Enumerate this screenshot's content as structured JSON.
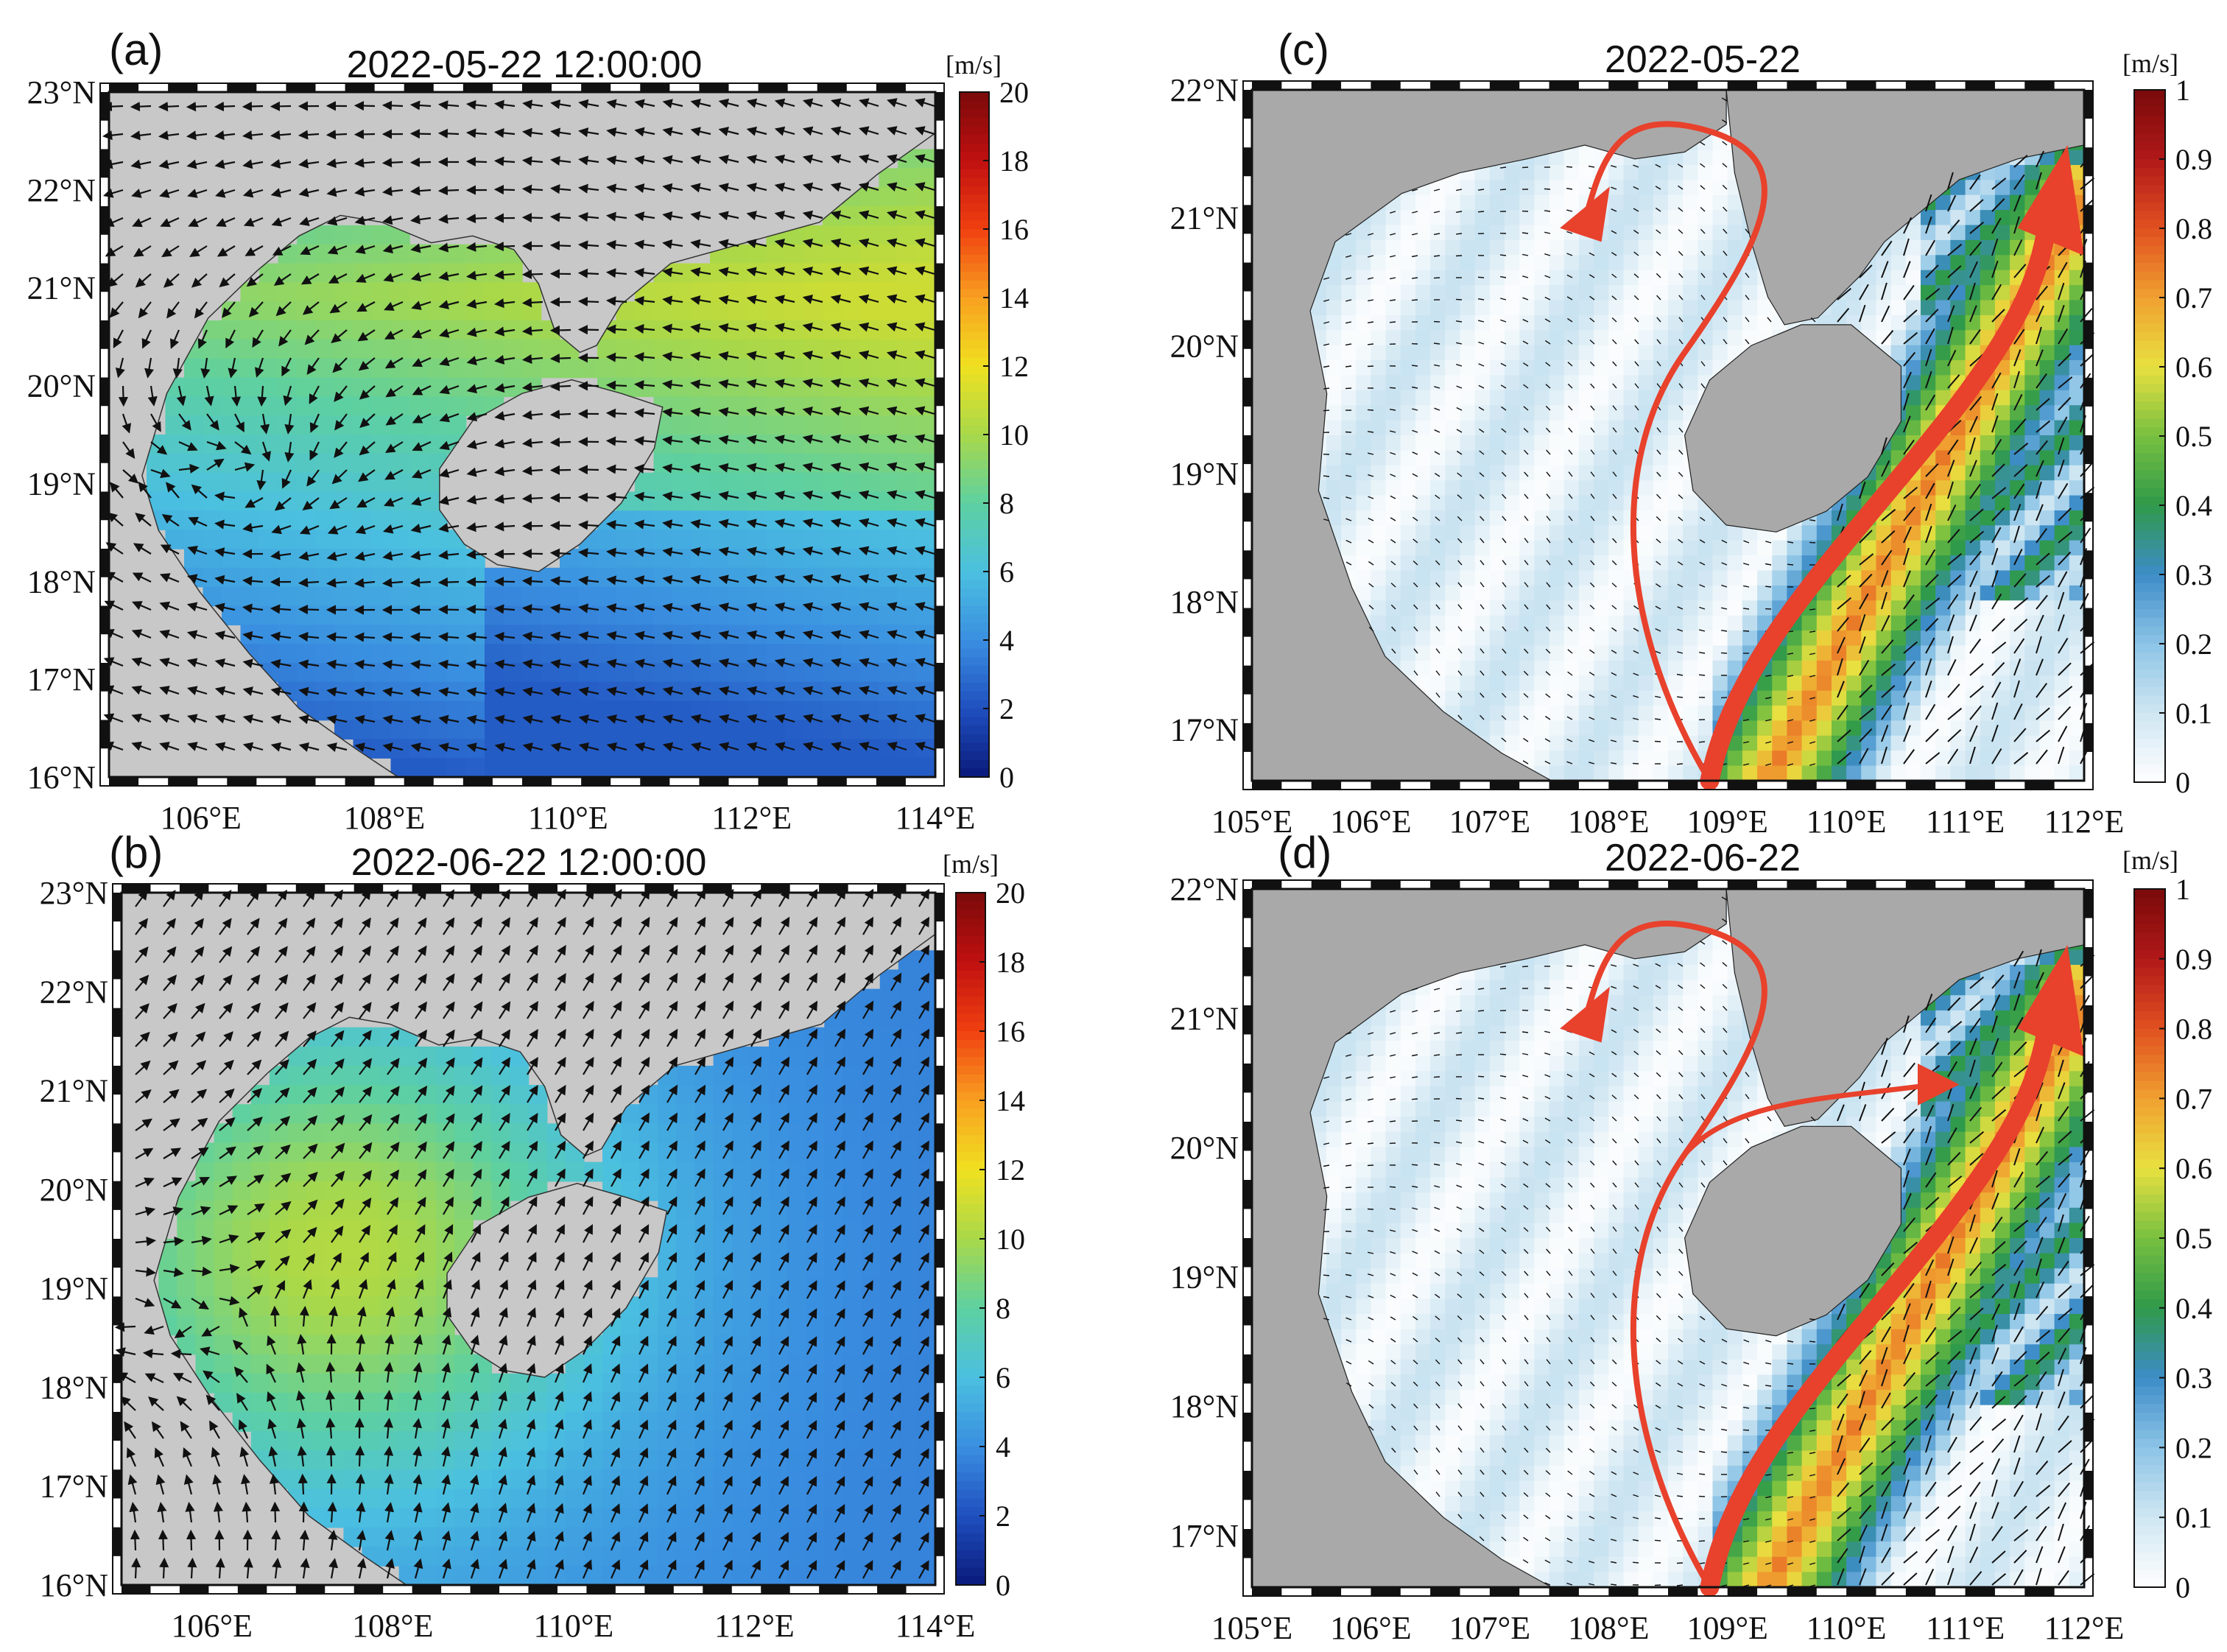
{
  "panels": [
    {
      "id": "a",
      "tag": "(a)",
      "title": "2022-05-22 12:00:00",
      "kind": "wind",
      "lon_range": [
        105,
        114
      ],
      "lat_range": [
        16,
        23
      ],
      "lon_ticks": [
        106,
        108,
        110,
        112,
        114
      ],
      "lon_tick_labels": [
        "106°E",
        "108°E",
        "110°E",
        "112°E",
        "114°E"
      ],
      "lat_ticks": [
        16,
        17,
        18,
        19,
        20,
        21,
        22,
        23
      ],
      "lat_tick_labels": [
        "16°N",
        "17°N",
        "18°N",
        "19°N",
        "20°N",
        "21°N",
        "22°N",
        "23°N"
      ],
      "colorbar": {
        "unit": "[m/s]",
        "min": 0,
        "max": 20,
        "ticks": [
          0,
          2,
          4,
          6,
          8,
          10,
          12,
          14,
          16,
          18,
          20
        ],
        "tick_labels": [
          "0",
          "2",
          "4",
          "6",
          "8",
          "10",
          "12",
          "14",
          "16",
          "18",
          "20"
        ],
        "colors": [
          "#0a1a7a",
          "#1f4fbf",
          "#3a8fe0",
          "#4bc0e0",
          "#5ed0a0",
          "#a8d84a",
          "#f0e020",
          "#f8a020",
          "#f04010",
          "#c01010",
          "#7a0a0a"
        ]
      },
      "field": {
        "direction_deg": 200,
        "vortex_lon": 106.4,
        "vortex_lat": 19.1
      }
    },
    {
      "id": "b",
      "tag": "(b)",
      "title": "2022-06-22 12:00:00",
      "kind": "wind",
      "lon_range": [
        105,
        114
      ],
      "lat_range": [
        16,
        23
      ],
      "lon_ticks": [
        106,
        108,
        110,
        112,
        114
      ],
      "lon_tick_labels": [
        "106°E",
        "108°E",
        "110°E",
        "112°E",
        "114°E"
      ],
      "lat_ticks": [
        16,
        17,
        18,
        19,
        20,
        21,
        22,
        23
      ],
      "lat_tick_labels": [
        "16°N",
        "17°N",
        "18°N",
        "19°N",
        "20°N",
        "21°N",
        "22°N",
        "23°N"
      ],
      "colorbar": {
        "unit": "[m/s]",
        "min": 0,
        "max": 20,
        "ticks": [
          0,
          2,
          4,
          6,
          8,
          10,
          12,
          14,
          16,
          18,
          20
        ],
        "tick_labels": [
          "0",
          "2",
          "4",
          "6",
          "8",
          "10",
          "12",
          "14",
          "16",
          "18",
          "20"
        ],
        "colors": [
          "#0a1a7a",
          "#1f4fbf",
          "#3a8fe0",
          "#4bc0e0",
          "#5ed0a0",
          "#a8d84a",
          "#f0e020",
          "#f8a020",
          "#f04010",
          "#c01010",
          "#7a0a0a"
        ]
      },
      "field": {
        "direction_deg": 60,
        "vortex_lon": 106.2,
        "vortex_lat": 18.7
      }
    },
    {
      "id": "c",
      "tag": "(c)",
      "title": "2022-05-22",
      "kind": "current",
      "lon_range": [
        105,
        112
      ],
      "lat_range": [
        16.6,
        22
      ],
      "lon_ticks": [
        105,
        106,
        107,
        108,
        109,
        110,
        111,
        112
      ],
      "lon_tick_labels": [
        "105°E",
        "106°E",
        "107°E",
        "108°E",
        "109°E",
        "110°E",
        "111°E",
        "112°E"
      ],
      "lat_ticks": [
        17,
        18,
        19,
        20,
        21,
        22
      ],
      "lat_tick_labels": [
        "17°N",
        "18°N",
        "19°N",
        "20°N",
        "21°N",
        "22°N"
      ],
      "colorbar": {
        "unit": "[m/s]",
        "min": 0,
        "max": 1,
        "ticks": [
          0,
          0.1,
          0.2,
          0.3,
          0.4,
          0.5,
          0.6,
          0.7,
          0.8,
          0.9,
          1
        ],
        "tick_labels": [
          "0",
          "0.1",
          "0.2",
          "0.3",
          "0.4",
          "0.5",
          "0.6",
          "0.7",
          "0.8",
          "0.9",
          "1"
        ],
        "colors": [
          "#ffffff",
          "#cfe6f2",
          "#8cc4e6",
          "#3d8cc8",
          "#2f9a4a",
          "#78c040",
          "#e8e040",
          "#f0a030",
          "#e05020",
          "#b01818",
          "#7a0a0a"
        ]
      },
      "arrows_drawn": [
        "north-branch-to-21N-108E",
        "shelf-jet-to-112E-21N"
      ]
    },
    {
      "id": "d",
      "tag": "(d)",
      "title": "2022-06-22",
      "kind": "current",
      "lon_range": [
        105,
        112
      ],
      "lat_range": [
        16.6,
        22
      ],
      "lon_ticks": [
        105,
        106,
        107,
        108,
        109,
        110,
        111,
        112
      ],
      "lon_tick_labels": [
        "105°E",
        "106°E",
        "107°E",
        "108°E",
        "109°E",
        "110°E",
        "111°E",
        "112°E"
      ],
      "lat_ticks": [
        17,
        18,
        19,
        20,
        21,
        22
      ],
      "lat_tick_labels": [
        "17°N",
        "18°N",
        "19°N",
        "20°N",
        "21°N",
        "22°N"
      ],
      "colorbar": {
        "unit": "[m/s]",
        "min": 0,
        "max": 1,
        "ticks": [
          0,
          0.1,
          0.2,
          0.3,
          0.4,
          0.5,
          0.6,
          0.7,
          0.8,
          0.9,
          1
        ],
        "tick_labels": [
          "0",
          "0.1",
          "0.2",
          "0.3",
          "0.4",
          "0.5",
          "0.6",
          "0.7",
          "0.8",
          "0.9",
          "1"
        ],
        "colors": [
          "#ffffff",
          "#cfe6f2",
          "#8cc4e6",
          "#3d8cc8",
          "#2f9a4a",
          "#78c040",
          "#e8e040",
          "#f0a030",
          "#e05020",
          "#b01818",
          "#7a0a0a"
        ]
      },
      "arrows_drawn": [
        "north-branch-to-21N-108E",
        "east-branch-to-Qiongzhou-Strait",
        "shelf-jet-to-112E-21N"
      ]
    }
  ],
  "colors": {
    "land": "#c8c8c8",
    "land_dark": "#a9a9a9",
    "frame": "#111111",
    "arrow_red": "#e8412c",
    "vector": "#111111"
  }
}
